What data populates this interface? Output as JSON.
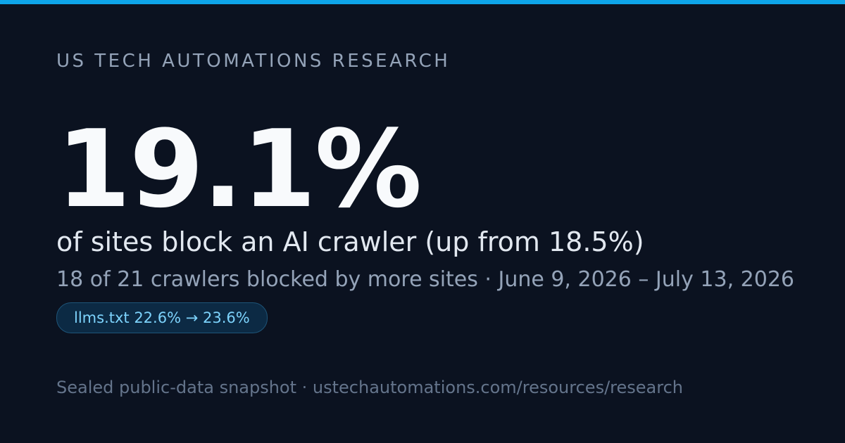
{
  "eyebrow": "US TECH AUTOMATIONS RESEARCH",
  "stat": "19.1%",
  "headline": "of sites block an AI crawler (up from 18.5%)",
  "subtitle": "18 of 21 crawlers blocked by more sites · June 9, 2026 – July 13, 2026",
  "badge": "llms.txt 22.6% → 23.6%",
  "footer": "Sealed public-data snapshot · ustechautomations.com/resources/research"
}
